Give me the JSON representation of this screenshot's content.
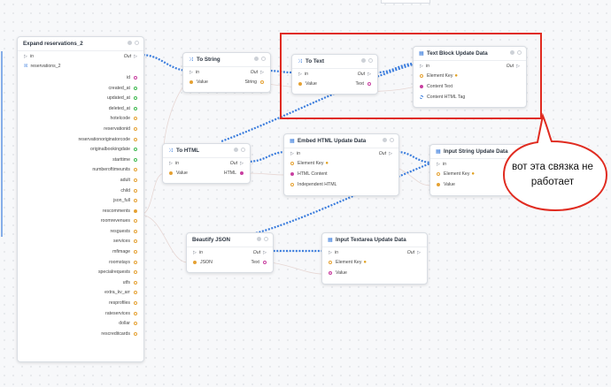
{
  "nodes": {
    "expand": {
      "title": "Expand reservations_2",
      "in_label": "in",
      "out_label": "Out",
      "source_label": "reservations_2",
      "fields": [
        {
          "label": "id",
          "color": "#c83fa0"
        },
        {
          "label": "created_at",
          "color": "#3fb950"
        },
        {
          "label": "updated_at",
          "color": "#3fb950"
        },
        {
          "label": "deleted_at",
          "color": "#3fb950"
        },
        {
          "label": "hotelcode",
          "color": "#e5a133"
        },
        {
          "label": "reservationid",
          "color": "#e5a133"
        },
        {
          "label": "reservationoriginatorcode",
          "color": "#e5a133"
        },
        {
          "label": "originalbookingdate",
          "color": "#3fb950"
        },
        {
          "label": "starttime",
          "color": "#3fb950"
        },
        {
          "label": "numberoftimeunits",
          "color": "#e5a133"
        },
        {
          "label": "adult",
          "color": "#e5a133"
        },
        {
          "label": "child",
          "color": "#e5a133"
        },
        {
          "label": "json_full",
          "color": "#e5a133"
        },
        {
          "label": "rescomments",
          "color": "#e5a133"
        },
        {
          "label": "roomrevenues",
          "color": "#e5a133"
        },
        {
          "label": "resguests",
          "color": "#e5a133"
        },
        {
          "label": "services",
          "color": "#e5a133"
        },
        {
          "label": "mfimage",
          "color": "#e5a133"
        },
        {
          "label": "roomstays",
          "color": "#e5a133"
        },
        {
          "label": "specialrequests",
          "color": "#e5a133"
        },
        {
          "label": "utfs",
          "color": "#e5a133"
        },
        {
          "label": "extra_kv_arr",
          "color": "#e5a133"
        },
        {
          "label": "resprofiles",
          "color": "#e5a133"
        },
        {
          "label": "rateservices",
          "color": "#e5a133"
        },
        {
          "label": "dollar",
          "color": "#e5a133"
        },
        {
          "label": "rescreditcards",
          "color": "#e5a133"
        }
      ]
    },
    "to_string": {
      "title": "To String",
      "in_label": "in",
      "out_label": "Out",
      "input_label": "Value",
      "output_label": "String"
    },
    "to_text": {
      "title": "To Text",
      "in_label": "in",
      "out_label": "Out",
      "input_label": "Value",
      "output_label": "Text"
    },
    "text_block": {
      "title": "Text Block Update Data",
      "in_label": "in",
      "out_label": "Out",
      "inputs": [
        "Element Key",
        "Content Text",
        "Content HTML Tag"
      ]
    },
    "to_html": {
      "title": "To HTML",
      "in_label": "in",
      "out_label": "Out",
      "input_label": "Value",
      "output_label": "HTML"
    },
    "embed_html": {
      "title": "Embed HTML Update Data",
      "in_label": "in",
      "out_label": "Out",
      "inputs": [
        "Element Key",
        "HTML Content",
        "Independent HTML"
      ]
    },
    "input_string": {
      "title": "Input String Update Data",
      "in_label": "in",
      "inputs": [
        "Element Key",
        "Value"
      ]
    },
    "beautify": {
      "title": "Beautify JSON",
      "in_label": "in",
      "out_label": "Out",
      "input_label": "JSON",
      "output_label": "Text"
    },
    "input_textarea": {
      "title": "Input Textarea Update Data",
      "in_label": "in",
      "out_label": "Out",
      "inputs": [
        "Element Key",
        "Value"
      ]
    }
  },
  "colors": {
    "flow": "#3b7ddd",
    "any": "#e5a133",
    "html": "#c83fa0",
    "date": "#3fb950",
    "annotation": "#e02b20"
  },
  "icons": {
    "flow": "play-arrow-icon",
    "convert": "function-icon",
    "component": "component-icon"
  },
  "annotation": {
    "bubble_text": "вот эта связка не работает"
  }
}
